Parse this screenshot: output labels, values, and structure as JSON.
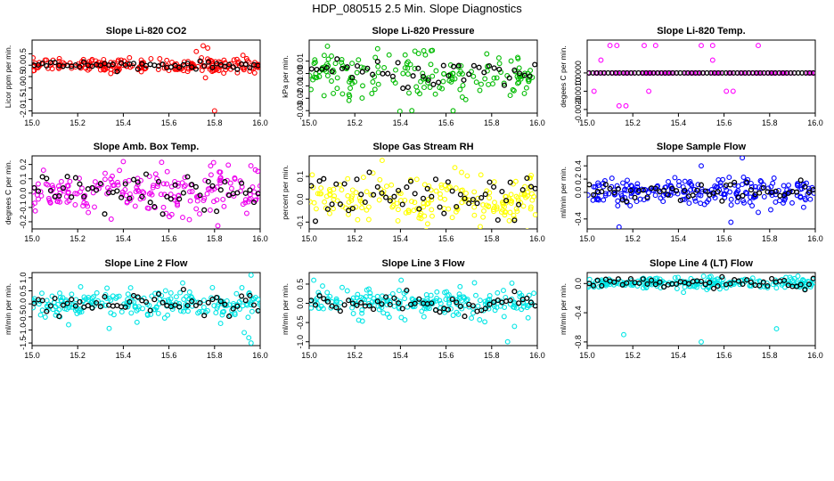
{
  "figure": {
    "title": "HDP_080515  2.5 Min. Slope Diagnostics"
  },
  "chart_data": [
    {
      "type": "scatter",
      "title": "Slope Li-820 CO2",
      "xlabel": "",
      "ylabel": "Licor ppm per min.",
      "xlim": [
        15.0,
        16.0
      ],
      "ylim": [
        -2.1,
        1.1
      ],
      "xticks": [
        15.0,
        15.2,
        15.4,
        15.6,
        15.8,
        16.0
      ],
      "xtick_labels": [
        "15.0",
        "15.2",
        "15.4",
        "15.6",
        "15.8",
        "16.0"
      ],
      "yticks": [
        -2.0,
        -1.5,
        -1.0,
        -0.5,
        0.0,
        0.5
      ],
      "ytick_labels": [
        "-2.0",
        "-1.5",
        "-1.0",
        "-0.5",
        "0.0",
        "0.5"
      ],
      "primary_color": "#ff0000",
      "primary_spread": 0.15,
      "primary_count": 220,
      "overlay_spread": 0.08,
      "overlay_count": 55,
      "outliers": [
        [
          15.75,
          0.85
        ],
        [
          15.77,
          0.75
        ],
        [
          15.72,
          0.6
        ],
        [
          15.76,
          -0.55
        ],
        [
          15.8,
          -2.0
        ]
      ]
    },
    {
      "type": "scatter",
      "title": "Slope Li-820 Pressure",
      "xlabel": "",
      "ylabel": "kPa per min.",
      "xlim": [
        15.0,
        16.0
      ],
      "ylim": [
        -0.032,
        0.027
      ],
      "xticks": [
        15.0,
        15.2,
        15.4,
        15.6,
        15.8,
        16.0
      ],
      "xtick_labels": [
        "15.0",
        "15.2",
        "15.4",
        "15.6",
        "15.8",
        "16.0"
      ],
      "yticks": [
        -0.03,
        -0.02,
        -0.01,
        0.0,
        0.01
      ],
      "ytick_labels": [
        "-0.03",
        "-0.02",
        "-0.01",
        "0.00",
        "0.01"
      ],
      "primary_color": "#00bb00",
      "primary_spread": 0.009,
      "primary_count": 170,
      "overlay_spread": 0.006,
      "overlay_count": 45,
      "outliers": [
        [
          15.45,
          -0.03
        ],
        [
          15.08,
          0.022
        ],
        [
          15.3,
          0.02
        ]
      ]
    },
    {
      "type": "scatter",
      "title": "Slope Li-820 Temp.",
      "xlabel": "",
      "ylabel": "degees C per min.",
      "xlim": [
        15.0,
        16.0
      ],
      "ylim": [
        -0.0022,
        0.0018
      ],
      "xticks": [
        15.0,
        15.2,
        15.4,
        15.6,
        15.8,
        16.0
      ],
      "xtick_labels": [
        "15.0",
        "15.2",
        "15.4",
        "15.6",
        "15.8",
        "16.0"
      ],
      "yticks": [
        -0.002,
        -0.001,
        0.0
      ],
      "ytick_labels": [
        "-0.0020",
        "-0.0010",
        "0.0000"
      ],
      "primary_color": "#ff00ff",
      "primary_spread": 0.0,
      "primary_count": 80,
      "overlay_spread": 0.0,
      "overlay_count": 60,
      "outliers": [
        [
          15.1,
          0.0015
        ],
        [
          15.13,
          0.0015
        ],
        [
          15.25,
          0.0015
        ],
        [
          15.3,
          0.0015
        ],
        [
          15.55,
          0.0015
        ],
        [
          15.75,
          0.0015
        ],
        [
          15.5,
          0.0015
        ],
        [
          15.03,
          -0.001
        ],
        [
          15.27,
          -0.001
        ],
        [
          15.61,
          -0.001
        ],
        [
          15.64,
          -0.001
        ],
        [
          15.14,
          -0.0018
        ],
        [
          15.17,
          -0.0018
        ],
        [
          15.55,
          0.0007
        ],
        [
          15.06,
          0.0007
        ]
      ]
    },
    {
      "type": "scatter",
      "title": "Slope Amb. Box Temp.",
      "xlabel": "",
      "ylabel": "degrees C per min.",
      "xlim": [
        15.0,
        16.0
      ],
      "ylim": [
        -0.25,
        0.26
      ],
      "xticks": [
        15.0,
        15.2,
        15.4,
        15.6,
        15.8,
        16.0
      ],
      "xtick_labels": [
        "15.0",
        "15.2",
        "15.4",
        "15.6",
        "15.8",
        "16.0"
      ],
      "yticks": [
        -0.2,
        -0.1,
        0.0,
        0.1,
        0.2
      ],
      "ytick_labels": [
        "-0.2",
        "-0.1",
        "0.0",
        "0.1",
        "0.2"
      ],
      "primary_color": "#ee00ee",
      "primary_spread": 0.08,
      "primary_count": 200,
      "overlay_spread": 0.07,
      "overlay_count": 55,
      "outliers": [
        [
          15.05,
          0.16
        ],
        [
          15.4,
          0.22
        ],
        [
          15.66,
          -0.17
        ]
      ]
    },
    {
      "type": "scatter",
      "title": "Slope Gas Stream RH",
      "xlabel": "",
      "ylabel": "percent per min.",
      "xlim": [
        15.0,
        16.0
      ],
      "ylim": [
        -0.13,
        0.19
      ],
      "xticks": [
        15.0,
        15.2,
        15.4,
        15.6,
        15.8,
        16.0
      ],
      "xtick_labels": [
        "15.0",
        "15.2",
        "15.4",
        "15.6",
        "15.8",
        "16.0"
      ],
      "yticks": [
        -0.1,
        0.0,
        0.1
      ],
      "ytick_labels": [
        "-0.1",
        "0.0",
        "0.1"
      ],
      "primary_color": "#ffff00",
      "primary_spread": 0.05,
      "primary_count": 200,
      "overlay_spread": 0.05,
      "overlay_count": 55,
      "outliers": [
        [
          15.32,
          0.17
        ],
        [
          15.75,
          -0.12
        ]
      ]
    },
    {
      "type": "scatter",
      "title": "Slope Sample Flow",
      "xlabel": "",
      "ylabel": "ml/min per min.",
      "xlim": [
        15.0,
        16.0
      ],
      "ylim": [
        -0.55,
        0.55
      ],
      "xticks": [
        15.0,
        15.2,
        15.4,
        15.6,
        15.8,
        16.0
      ],
      "xtick_labels": [
        "15.0",
        "15.2",
        "15.4",
        "15.6",
        "15.8",
        "16.0"
      ],
      "yticks": [
        -0.4,
        0.0,
        0.2,
        0.4
      ],
      "ytick_labels": [
        "-0.4",
        "0.0",
        "0.2",
        "0.4"
      ],
      "primary_color": "#0000ff",
      "primary_spread": 0.1,
      "primary_count": 220,
      "overlay_spread": 0.07,
      "overlay_count": 55,
      "outliers": [
        [
          15.68,
          0.52
        ],
        [
          15.5,
          0.4
        ],
        [
          15.14,
          -0.52
        ],
        [
          15.63,
          -0.45
        ],
        [
          15.75,
          -0.3
        ]
      ]
    },
    {
      "type": "scatter",
      "title": "Slope Line 2 Flow",
      "xlabel": "",
      "ylabel": "ml/min per min.",
      "xlim": [
        15.0,
        16.0
      ],
      "ylim": [
        -1.6,
        1.2
      ],
      "xticks": [
        15.0,
        15.2,
        15.4,
        15.6,
        15.8,
        16.0
      ],
      "xtick_labels": [
        "15.0",
        "15.2",
        "15.4",
        "15.6",
        "15.8",
        "16.0"
      ],
      "yticks": [
        -1.5,
        -1.0,
        -0.5,
        0.0,
        0.5,
        1.0
      ],
      "ytick_labels": [
        "-1.5",
        "-1.0",
        "-0.5",
        "0.0",
        "0.5",
        "1.0"
      ],
      "primary_color": "#00e5e5",
      "primary_spread": 0.25,
      "primary_count": 220,
      "overlay_spread": 0.2,
      "overlay_count": 55,
      "outliers": [
        [
          15.95,
          -1.3
        ],
        [
          15.96,
          -1.5
        ],
        [
          15.93,
          -1.1
        ],
        [
          15.66,
          0.8
        ],
        [
          15.96,
          1.1
        ],
        [
          15.16,
          -0.8
        ]
      ]
    },
    {
      "type": "scatter",
      "title": "Slope Line 3 Flow",
      "xlabel": "",
      "ylabel": "ml/min per min.",
      "xlim": [
        15.0,
        16.0
      ],
      "ylim": [
        -1.1,
        0.8
      ],
      "xticks": [
        15.0,
        15.2,
        15.4,
        15.6,
        15.8,
        16.0
      ],
      "xtick_labels": [
        "15.0",
        "15.2",
        "15.4",
        "15.6",
        "15.8",
        "16.0"
      ],
      "yticks": [
        -1.0,
        -0.5,
        0.0,
        0.5
      ],
      "ytick_labels": [
        "-1.0",
        "-0.5",
        "0.0",
        "0.5"
      ],
      "primary_color": "#00e5e5",
      "primary_spread": 0.18,
      "primary_count": 220,
      "overlay_spread": 0.15,
      "overlay_count": 55,
      "outliers": [
        [
          15.87,
          -1.0
        ],
        [
          15.02,
          0.6
        ],
        [
          15.9,
          -0.6
        ]
      ]
    },
    {
      "type": "scatter",
      "title": "Slope Line 4 (LT) Flow",
      "xlabel": "",
      "ylabel": "ml/min per min.",
      "xlim": [
        15.0,
        16.0
      ],
      "ylim": [
        -0.85,
        0.15
      ],
      "xticks": [
        15.0,
        15.2,
        15.4,
        15.6,
        15.8,
        16.0
      ],
      "xtick_labels": [
        "15.0",
        "15.2",
        "15.4",
        "15.6",
        "15.8",
        "16.0"
      ],
      "yticks": [
        -0.8,
        -0.4,
        0.0
      ],
      "ytick_labels": [
        "-0.8",
        "-0.4",
        "0.0"
      ],
      "primary_color": "#00e5e5",
      "primary_spread": 0.04,
      "primary_count": 220,
      "overlay_spread": 0.035,
      "overlay_count": 55,
      "outliers": [
        [
          15.5,
          -0.8
        ],
        [
          15.16,
          -0.7
        ],
        [
          15.83,
          -0.62
        ]
      ]
    }
  ]
}
